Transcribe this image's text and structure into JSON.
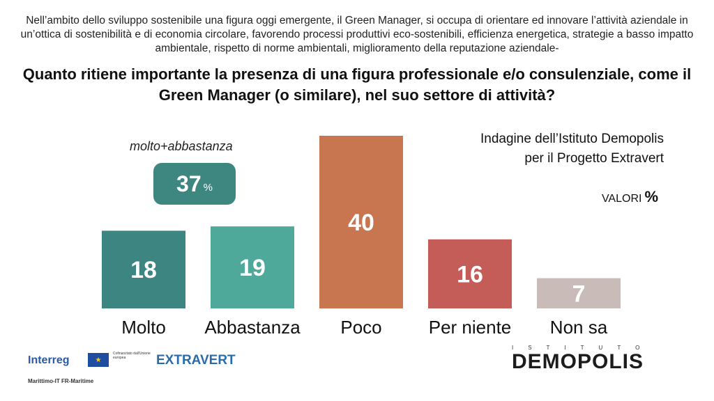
{
  "intro_text": "Nell’ambito dello sviluppo sostenibile una figura oggi emergente, il Green Manager, si occupa di orientare ed innovare l’attività aziendale in un’ottica di sostenibilità e di economia circolare, favorendo processi produttivi eco-sostenibili, efficienza energetica, strategie a basso impatto ambientale, rispetto di norme ambientali, miglioramento della reputazione aziendale-",
  "question": "Quanto ritiene importante la presenza di una figura professionale e/o consulenziale, come il Green Manager (o similare), nel suo settore di attività?",
  "source_line1": "Indagine dell’Istituto Demopolis",
  "source_line2": "per il Progetto Extravert",
  "valori_label": "VALORI",
  "valori_pct": "%",
  "summary": {
    "label": "molto+abbastanza",
    "value": "37",
    "unit": "%",
    "color": "#3e8680"
  },
  "chart_data": {
    "type": "bar",
    "categories": [
      "Molto",
      "Abbastanza",
      "Poco",
      "Per niente",
      "Non sa"
    ],
    "values": [
      18,
      19,
      40,
      16,
      7
    ],
    "colors": [
      "#3d8580",
      "#4ea99b",
      "#c77650",
      "#c45c57",
      "#c9bcb8"
    ],
    "value_unit": "%"
  },
  "logos": {
    "interreg": "Interreg",
    "interreg_sub": "Marittimo-IT FR-Maritime",
    "eu_text": "Cofinanziato dall'Unione europea",
    "extravert": "EXTRAVERT",
    "demopolis_top": "ISTITUTO",
    "demopolis": "DEMOPOLIS"
  }
}
